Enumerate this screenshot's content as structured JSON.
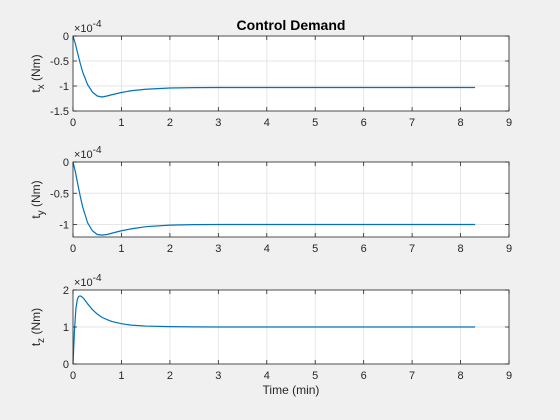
{
  "chart_data": [
    {
      "type": "line",
      "title": "Control Demand",
      "ylabel_main": "t",
      "ylabel_sub": "x",
      "ylabel_unit": " (Nm)",
      "xlabel": "",
      "exponent_base": "×10",
      "exponent_power": "-4",
      "xlim": [
        0,
        9
      ],
      "ylim": [
        -1.5,
        0
      ],
      "xticks": [
        "0",
        "1",
        "2",
        "3",
        "4",
        "5",
        "6",
        "7",
        "8",
        "9"
      ],
      "yticks": [
        "-1.5",
        "-1",
        "-0.5",
        "0"
      ],
      "grid": true,
      "series": [
        {
          "color": "#0072BD",
          "x": [
            0,
            0.05,
            0.1,
            0.15,
            0.2,
            0.3,
            0.4,
            0.5,
            0.6,
            0.7,
            0.8,
            1.0,
            1.2,
            1.5,
            2.0,
            2.5,
            3.0,
            4.0,
            5.0,
            6.0,
            7.0,
            8.3
          ],
          "y": [
            0,
            -0.16,
            -0.36,
            -0.55,
            -0.72,
            -0.97,
            -1.12,
            -1.2,
            -1.22,
            -1.2,
            -1.175,
            -1.13,
            -1.095,
            -1.065,
            -1.04,
            -1.032,
            -1.03,
            -1.03,
            -1.03,
            -1.03,
            -1.03,
            -1.03
          ]
        }
      ]
    },
    {
      "type": "line",
      "title": "",
      "ylabel_main": "t",
      "ylabel_sub": "y",
      "ylabel_unit": " (Nm)",
      "xlabel": "",
      "exponent_base": "×10",
      "exponent_power": "-4",
      "xlim": [
        0,
        9
      ],
      "ylim": [
        -1.2,
        0
      ],
      "xticks": [
        "0",
        "1",
        "2",
        "3",
        "4",
        "5",
        "6",
        "7",
        "8",
        "9"
      ],
      "yticks": [
        "-1",
        "-0.5",
        "0"
      ],
      "ytick_values": [
        -1,
        -0.5,
        0
      ],
      "grid": true,
      "series": [
        {
          "color": "#0072BD",
          "x": [
            0,
            0.05,
            0.1,
            0.15,
            0.2,
            0.3,
            0.4,
            0.5,
            0.6,
            0.7,
            0.8,
            1.0,
            1.2,
            1.5,
            2.0,
            2.5,
            3.0,
            4.0,
            5.0,
            6.0,
            7.0,
            8.3
          ],
          "y": [
            0,
            -0.16,
            -0.36,
            -0.55,
            -0.72,
            -0.97,
            -1.1,
            -1.16,
            -1.17,
            -1.16,
            -1.14,
            -1.1,
            -1.07,
            -1.035,
            -1.01,
            -1.002,
            -1.0,
            -1.0,
            -1.0,
            -1.0,
            -1.0,
            -1.0
          ]
        }
      ]
    },
    {
      "type": "line",
      "title": "",
      "ylabel_main": "t",
      "ylabel_sub": "z",
      "ylabel_unit": " (Nm)",
      "xlabel": "Time (min)",
      "exponent_base": "×10",
      "exponent_power": "-4",
      "xlim": [
        0,
        9
      ],
      "ylim": [
        0,
        2
      ],
      "xticks": [
        "0",
        "1",
        "2",
        "3",
        "4",
        "5",
        "6",
        "7",
        "8",
        "9"
      ],
      "yticks": [
        "0",
        "1",
        "2"
      ],
      "ytick_values": [
        0,
        1,
        2
      ],
      "grid": true,
      "series": [
        {
          "color": "#0072BD",
          "x": [
            0,
            0.03,
            0.06,
            0.09,
            0.12,
            0.15,
            0.2,
            0.25,
            0.3,
            0.4,
            0.5,
            0.6,
            0.7,
            0.8,
            1.0,
            1.2,
            1.5,
            2.0,
            2.5,
            3.0,
            4.0,
            5.0,
            6.0,
            7.0,
            8.3
          ],
          "y": [
            0,
            0.9,
            1.5,
            1.75,
            1.83,
            1.84,
            1.8,
            1.72,
            1.63,
            1.47,
            1.35,
            1.26,
            1.2,
            1.15,
            1.09,
            1.05,
            1.025,
            1.01,
            1.003,
            1.0,
            1.0,
            1.0,
            1.0,
            1.0,
            1.0
          ]
        }
      ]
    }
  ]
}
